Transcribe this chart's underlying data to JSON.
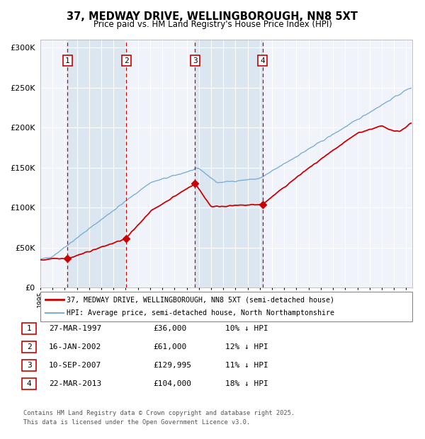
{
  "title_line1": "37, MEDWAY DRIVE, WELLINGBOROUGH, NN8 5XT",
  "title_line2": "Price paid vs. HM Land Registry's House Price Index (HPI)",
  "ytick_vals": [
    0,
    50000,
    100000,
    150000,
    200000,
    250000,
    300000
  ],
  "ylim": [
    0,
    310000
  ],
  "xlim_start": 1995.0,
  "xlim_end": 2025.5,
  "sale_dates": [
    1997.23,
    2002.05,
    2007.69,
    2013.22
  ],
  "sale_prices": [
    36000,
    61000,
    129995,
    104000
  ],
  "legend_label_red": "37, MEDWAY DRIVE, WELLINGBOROUGH, NN8 5XT (semi-detached house)",
  "legend_label_blue": "HPI: Average price, semi-detached house, North Northamptonshire",
  "table_data": [
    [
      "1",
      "27-MAR-1997",
      "£36,000",
      "10% ↓ HPI"
    ],
    [
      "2",
      "16-JAN-2002",
      "£61,000",
      "12% ↓ HPI"
    ],
    [
      "3",
      "10-SEP-2007",
      "£129,995",
      "11% ↓ HPI"
    ],
    [
      "4",
      "22-MAR-2013",
      "£104,000",
      "18% ↓ HPI"
    ]
  ],
  "footer_text": "Contains HM Land Registry data © Crown copyright and database right 2025.\nThis data is licensed under the Open Government Licence v3.0.",
  "red_color": "#cc0000",
  "blue_color": "#7bafd4",
  "band_color": "#dce6f1",
  "chart_bg": "#f0f4fa"
}
